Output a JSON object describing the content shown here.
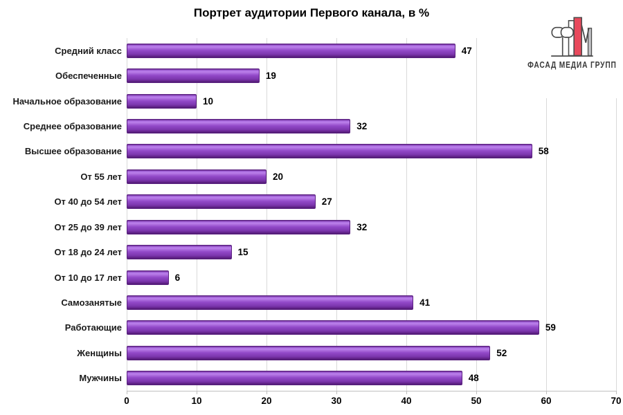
{
  "title": "Портрет аудитории Первого канала, в %",
  "chart_data": {
    "type": "bar",
    "orientation": "horizontal",
    "title": "Портрет аудитории Первого канала, в %",
    "categories": [
      "Средний класс",
      "Обеспеченные",
      "Начальное образование",
      "Среднее образование",
      "Высшее образование",
      "От 55 лет",
      "От 40 до 54 лет",
      "От 25 до 39 лет",
      "От 18 до 24 лет",
      "От 10 до 17 лет",
      "Самозанятые",
      "Работающие",
      "Женщины",
      "Мужчины"
    ],
    "values": [
      47,
      19,
      10,
      32,
      58,
      20,
      27,
      32,
      15,
      6,
      41,
      59,
      52,
      48
    ],
    "xlabel": "",
    "ylabel": "",
    "xlim": [
      0,
      70
    ],
    "x_ticks": [
      0,
      10,
      20,
      30,
      40,
      50,
      60,
      70
    ],
    "grid": "vertical-only",
    "legend": "none",
    "value_labels_shown": true,
    "colors": {
      "bar": "#8d42c4",
      "bar_highlight": "#bb80ea",
      "bar_shadow": "#4e1b70",
      "bar_border": "#5a2080",
      "gridline": "#d9d9d9",
      "axis": "#bfbfbf",
      "text": "#000000"
    }
  },
  "logo": {
    "text": "ФАСАД МЕДИА ГРУПП",
    "text_color": "#3a3a3a",
    "mark_red": "#e8495c",
    "mark_gray": "#c4c4c8",
    "mark_outline": "#4a4a4a"
  }
}
